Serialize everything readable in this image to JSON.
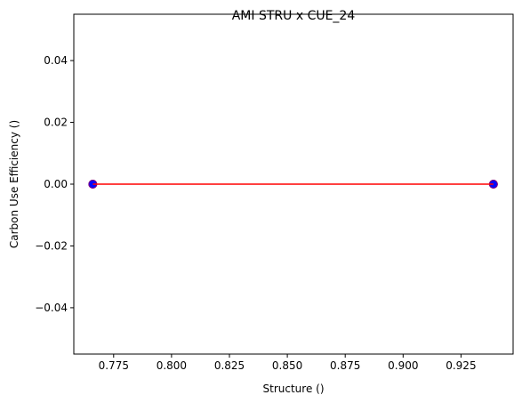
{
  "chart_data": {
    "type": "scatter",
    "title": "AMI STRU x CUE_24",
    "xlabel": "Structure ()",
    "ylabel": "Carbon Use Efficiency ()",
    "xlim": [
      0.7578,
      0.9475
    ],
    "ylim": [
      -0.055,
      0.055
    ],
    "xticks": [
      0.775,
      0.8,
      0.825,
      0.85,
      0.875,
      0.9,
      0.925
    ],
    "xtick_labels": [
      "0.775",
      "0.800",
      "0.825",
      "0.850",
      "0.875",
      "0.900",
      "0.925"
    ],
    "yticks": [
      -0.04,
      -0.02,
      0.0,
      0.02,
      0.04
    ],
    "ytick_labels": [
      "−0.04",
      "−0.02",
      "0.00",
      "0.02",
      "0.04"
    ],
    "grid": false,
    "series": [
      {
        "type": "scatter",
        "points": [
          [
            0.766,
            0.0
          ],
          [
            0.766,
            0.0
          ],
          [
            0.939,
            0.0
          ],
          [
            0.939,
            0.0
          ]
        ],
        "color": "#0000ff",
        "edge_color": "#800080"
      },
      {
        "type": "line",
        "x": [
          0.766,
          0.939
        ],
        "y": [
          0.0,
          0.0
        ],
        "color": "#ff0000"
      }
    ]
  }
}
